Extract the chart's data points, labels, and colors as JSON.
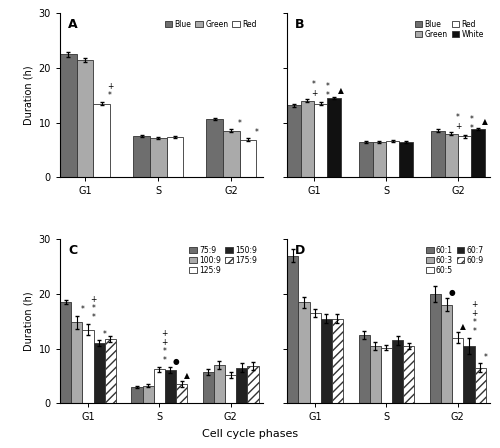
{
  "A": {
    "title": "A",
    "legend_labels": [
      "Blue",
      "Green",
      "Red"
    ],
    "colors": [
      "#6e6e6e",
      "#aaaaaa",
      "#ffffff"
    ],
    "edgecolors": [
      "#333333",
      "#333333",
      "#333333"
    ],
    "hatches": [
      null,
      null,
      null
    ],
    "phases": [
      "G1",
      "S",
      "G2"
    ],
    "values": [
      [
        22.5,
        21.5,
        13.5
      ],
      [
        7.5,
        7.2,
        7.3
      ],
      [
        10.7,
        8.5,
        6.9
      ]
    ],
    "errors": [
      [
        0.4,
        0.4,
        0.3
      ],
      [
        0.2,
        0.2,
        0.2
      ],
      [
        0.2,
        0.3,
        0.2
      ]
    ],
    "ylim": [
      0,
      30
    ],
    "yticks": [
      0,
      10,
      20,
      30
    ]
  },
  "B": {
    "title": "B",
    "legend_labels": [
      "Blue",
      "Green",
      "Red",
      "White"
    ],
    "colors": [
      "#6e6e6e",
      "#aaaaaa",
      "#ffffff",
      "#111111"
    ],
    "edgecolors": [
      "#333333",
      "#333333",
      "#333333",
      "#333333"
    ],
    "hatches": [
      null,
      null,
      null,
      null
    ],
    "phases": [
      "G1",
      "S",
      "G2"
    ],
    "values": [
      [
        13.2,
        14.0,
        13.5,
        14.5
      ],
      [
        6.5,
        6.5,
        6.6,
        6.5
      ],
      [
        8.5,
        8.0,
        7.5,
        8.8
      ]
    ],
    "errors": [
      [
        0.3,
        0.3,
        0.3,
        0.2
      ],
      [
        0.2,
        0.2,
        0.2,
        0.2
      ],
      [
        0.3,
        0.2,
        0.3,
        0.2
      ]
    ],
    "ylim": [
      0,
      30
    ],
    "yticks": [
      0,
      10,
      20,
      30
    ]
  },
  "C": {
    "title": "C",
    "legend_labels": [
      "75:9",
      "100:9",
      "125:9",
      "150:9",
      "175:9"
    ],
    "colors": [
      "#6e6e6e",
      "#aaaaaa",
      "#ffffff",
      "#222222",
      "#ffffff"
    ],
    "edgecolors": [
      "#333333",
      "#333333",
      "#333333",
      "#333333",
      "#333333"
    ],
    "hatches": [
      null,
      null,
      null,
      null,
      "////"
    ],
    "phases": [
      "G1",
      "S",
      "G2"
    ],
    "values": [
      [
        18.5,
        14.8,
        13.5,
        11.0,
        11.8
      ],
      [
        3.0,
        3.2,
        6.2,
        6.1,
        3.5
      ],
      [
        5.7,
        7.0,
        5.2,
        6.5,
        6.8
      ]
    ],
    "errors": [
      [
        0.4,
        1.2,
        1.0,
        0.5,
        0.5
      ],
      [
        0.2,
        0.3,
        0.5,
        0.5,
        0.5
      ],
      [
        0.5,
        0.8,
        0.5,
        0.8,
        0.8
      ]
    ],
    "ylim": [
      0,
      30
    ],
    "yticks": [
      0,
      10,
      20,
      30
    ]
  },
  "D": {
    "title": "D",
    "legend_labels": [
      "60:1",
      "60:3",
      "60:5",
      "60:7",
      "60:9"
    ],
    "colors": [
      "#6e6e6e",
      "#aaaaaa",
      "#ffffff",
      "#222222",
      "#ffffff"
    ],
    "edgecolors": [
      "#333333",
      "#333333",
      "#333333",
      "#333333",
      "#333333"
    ],
    "hatches": [
      null,
      null,
      null,
      null,
      "////"
    ],
    "phases": [
      "G1",
      "S",
      "G2"
    ],
    "values": [
      [
        27.0,
        18.5,
        16.5,
        15.5,
        15.5
      ],
      [
        12.5,
        10.5,
        10.2,
        11.5,
        10.5
      ],
      [
        20.0,
        18.0,
        12.0,
        10.5,
        6.5
      ]
    ],
    "errors": [
      [
        1.2,
        1.0,
        0.8,
        0.8,
        0.8
      ],
      [
        0.8,
        0.8,
        0.5,
        0.8,
        0.5
      ],
      [
        1.5,
        1.2,
        1.0,
        1.5,
        0.8
      ]
    ],
    "ylim": [
      0,
      30
    ],
    "yticks": [
      0,
      10,
      20,
      30
    ]
  },
  "ylabel": "Duration (h)",
  "xlabel": "Cell cycle phases"
}
